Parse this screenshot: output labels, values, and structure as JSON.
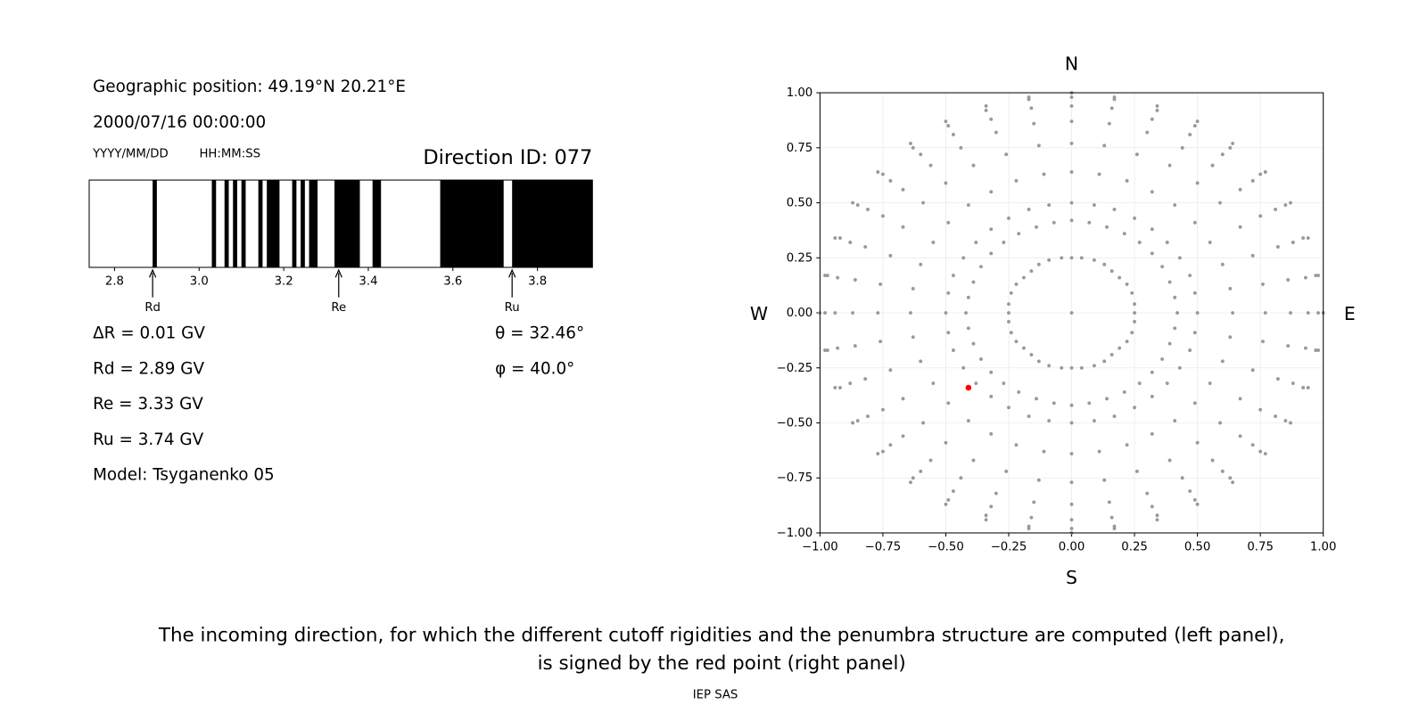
{
  "header": {
    "position": "Geographic position: 49.19°N 20.21°E",
    "datetime": "2000/07/16 00:00:00",
    "date_format": "YYYY/MM/DD",
    "time_format": "HH:MM:SS",
    "direction": "Direction ID: 077"
  },
  "results": {
    "delta_r": "ΔR = 0.01 GV",
    "rd": "Rd = 2.89 GV",
    "re": "Re = 3.33 GV",
    "ru": "Ru = 3.74 GV",
    "model": "Model: Tsyganenko 05",
    "theta": "θ = 32.46°",
    "phi": "φ = 40.0°"
  },
  "chart_data": [
    {
      "type": "penumbra",
      "bands": [
        [
          2.89,
          2.9
        ],
        [
          3.03,
          3.04
        ],
        [
          3.06,
          3.07
        ],
        [
          3.08,
          3.09
        ],
        [
          3.1,
          3.11
        ],
        [
          3.14,
          3.15
        ],
        [
          3.16,
          3.19
        ],
        [
          3.22,
          3.23
        ],
        [
          3.24,
          3.25
        ],
        [
          3.26,
          3.28
        ],
        [
          3.32,
          3.38
        ],
        [
          3.41,
          3.43
        ],
        [
          3.57,
          3.72
        ],
        [
          3.74,
          3.93
        ]
      ],
      "color": "#000000",
      "markers": [
        {
          "label": "Rd",
          "value": 2.89
        },
        {
          "label": "Re",
          "value": 3.33
        },
        {
          "label": "Ru",
          "value": 3.74
        }
      ],
      "xlim": [
        2.74,
        3.93
      ],
      "xticks": [
        2.8,
        {
          "value": 3,
          "label": "3.0"
        },
        3.2,
        3.4,
        3.6,
        3.8
      ]
    },
    {
      "type": "scatter",
      "color": "#999999",
      "x": [
        0,
        0.25,
        0.42,
        0.5,
        0.64,
        0.77,
        0.87,
        0.94,
        0.98,
        1,
        0.25,
        0.41,
        0.49,
        0.63,
        0.76,
        0.86,
        0.93,
        0.97,
        0.98,
        0.24,
        0.39,
        0.47,
        0.6,
        0.72,
        0.82,
        0.88,
        0.92,
        0.94,
        0.22,
        0.36,
        0.43,
        0.55,
        0.67,
        0.75,
        0.81,
        0.85,
        0.87,
        0.19,
        0.32,
        0.38,
        0.49,
        0.59,
        0.67,
        0.72,
        0.75,
        0.77,
        0.16,
        0.27,
        0.32,
        0.41,
        0.5,
        0.56,
        0.6,
        0.63,
        0.64,
        0.13,
        0.21,
        0.25,
        0.32,
        0.39,
        0.44,
        0.47,
        0.49,
        0.5,
        0.09,
        0.14,
        0.17,
        0.22,
        0.26,
        0.3,
        0.32,
        0.34,
        0.34,
        0.04,
        0.07,
        0.09,
        0.11,
        0.13,
        0.15,
        0.16,
        0.17,
        0.17,
        0,
        0,
        0,
        0,
        0,
        0,
        0,
        0,
        0,
        -0.04,
        -0.07,
        -0.09,
        -0.11,
        -0.13,
        -0.15,
        -0.16,
        -0.17,
        -0.17,
        -0.09,
        -0.14,
        -0.17,
        -0.22,
        -0.26,
        -0.3,
        -0.32,
        -0.34,
        -0.34,
        -0.13,
        -0.21,
        -0.25,
        -0.32,
        -0.39,
        -0.44,
        -0.47,
        -0.49,
        -0.5,
        -0.16,
        -0.27,
        -0.32,
        -0.41,
        -0.5,
        -0.56,
        -0.6,
        -0.63,
        -0.64,
        -0.19,
        -0.32,
        -0.38,
        -0.49,
        -0.59,
        -0.67,
        -0.72,
        -0.75,
        -0.77,
        -0.22,
        -0.36,
        -0.43,
        -0.55,
        -0.67,
        -0.75,
        -0.81,
        -0.85,
        -0.87,
        -0.24,
        -0.39,
        -0.47,
        -0.6,
        -0.72,
        -0.82,
        -0.88,
        -0.92,
        -0.94,
        -0.25,
        -0.41,
        -0.49,
        -0.63,
        -0.76,
        -0.86,
        -0.93,
        -0.97,
        -0.98,
        -0.25,
        -0.42,
        -0.5,
        -0.64,
        -0.77,
        -0.87,
        -0.94,
        -0.98,
        -1,
        -0.25,
        -0.41,
        -0.49,
        -0.63,
        -0.76,
        -0.86,
        -0.93,
        -0.97,
        -0.98,
        -0.24,
        -0.39,
        -0.47,
        -0.6,
        -0.72,
        -0.82,
        -0.88,
        -0.92,
        -0.94,
        -0.22,
        -0.36,
        -0.43,
        -0.55,
        -0.67,
        -0.75,
        -0.81,
        -0.85,
        -0.87,
        -0.19,
        -0.32,
        -0.38,
        -0.49,
        -0.59,
        -0.67,
        -0.72,
        -0.75,
        -0.77,
        -0.16,
        -0.27,
        -0.32,
        -0.41,
        -0.5,
        -0.56,
        -0.6,
        -0.63,
        -0.64,
        -0.13,
        -0.21,
        -0.25,
        -0.32,
        -0.39,
        -0.44,
        -0.47,
        -0.49,
        -0.5,
        -0.09,
        -0.14,
        -0.17,
        -0.22,
        -0.26,
        -0.3,
        -0.32,
        -0.34,
        -0.34,
        -0.04,
        -0.07,
        -0.09,
        -0.11,
        -0.13,
        -0.15,
        -0.16,
        -0.17,
        -0.17,
        0,
        0,
        0,
        0,
        0,
        0,
        0,
        0,
        0,
        0.04,
        0.07,
        0.09,
        0.11,
        0.13,
        0.15,
        0.16,
        0.17,
        0.17,
        0.09,
        0.14,
        0.17,
        0.22,
        0.26,
        0.3,
        0.32,
        0.34,
        0.34,
        0.13,
        0.21,
        0.25,
        0.32,
        0.39,
        0.44,
        0.47,
        0.49,
        0.5,
        0.16,
        0.27,
        0.32,
        0.41,
        0.5,
        0.56,
        0.6,
        0.63,
        0.64,
        0.19,
        0.32,
        0.38,
        0.49,
        0.59,
        0.67,
        0.72,
        0.75,
        0.77,
        0.22,
        0.36,
        0.43,
        0.55,
        0.67,
        0.75,
        0.81,
        0.85,
        0.87,
        0.24,
        0.39,
        0.47,
        0.6,
        0.72,
        0.82,
        0.88,
        0.92,
        0.94,
        0.25,
        0.41,
        0.49,
        0.63,
        0.76,
        0.86,
        0.93,
        0.97,
        0.98
      ],
      "values": [
        0,
        0,
        0,
        0,
        0,
        0,
        0,
        0,
        0,
        0,
        0.04,
        0.07,
        0.09,
        0.11,
        0.13,
        0.15,
        0.16,
        0.17,
        0.17,
        0.09,
        0.14,
        0.17,
        0.22,
        0.26,
        0.3,
        0.32,
        0.34,
        0.34,
        0.13,
        0.21,
        0.25,
        0.32,
        0.39,
        0.44,
        0.47,
        0.49,
        0.5,
        0.16,
        0.27,
        0.32,
        0.41,
        0.5,
        0.56,
        0.6,
        0.63,
        0.64,
        0.19,
        0.32,
        0.38,
        0.49,
        0.59,
        0.67,
        0.72,
        0.75,
        0.77,
        0.22,
        0.36,
        0.43,
        0.55,
        0.67,
        0.75,
        0.81,
        0.85,
        0.87,
        0.24,
        0.39,
        0.47,
        0.6,
        0.72,
        0.82,
        0.88,
        0.92,
        0.94,
        0.25,
        0.41,
        0.49,
        0.63,
        0.76,
        0.86,
        0.93,
        0.97,
        0.98,
        0.25,
        0.42,
        0.5,
        0.64,
        0.77,
        0.87,
        0.94,
        0.98,
        1,
        0.25,
        0.41,
        0.49,
        0.63,
        0.76,
        0.86,
        0.93,
        0.97,
        0.98,
        0.24,
        0.39,
        0.47,
        0.6,
        0.72,
        0.82,
        0.88,
        0.92,
        0.94,
        0.22,
        0.36,
        0.43,
        0.55,
        0.67,
        0.75,
        0.81,
        0.85,
        0.87,
        0.19,
        0.32,
        0.38,
        0.49,
        0.59,
        0.67,
        0.72,
        0.75,
        0.77,
        0.16,
        0.27,
        0.32,
        0.41,
        0.5,
        0.56,
        0.6,
        0.63,
        0.64,
        0.13,
        0.21,
        0.25,
        0.32,
        0.39,
        0.44,
        0.47,
        0.49,
        0.5,
        0.09,
        0.14,
        0.17,
        0.22,
        0.26,
        0.3,
        0.32,
        0.34,
        0.34,
        0.04,
        0.07,
        0.09,
        0.11,
        0.13,
        0.15,
        0.16,
        0.17,
        0.17,
        0,
        0,
        0,
        0,
        0,
        0,
        0,
        0,
        0,
        -0.04,
        -0.07,
        -0.09,
        -0.11,
        -0.13,
        -0.15,
        -0.16,
        -0.17,
        -0.17,
        -0.09,
        -0.14,
        -0.17,
        -0.22,
        -0.26,
        -0.3,
        -0.32,
        -0.34,
        -0.34,
        -0.13,
        -0.21,
        -0.25,
        -0.32,
        -0.39,
        -0.44,
        -0.47,
        -0.49,
        -0.5,
        -0.16,
        -0.27,
        -0.32,
        -0.41,
        -0.5,
        -0.56,
        -0.6,
        -0.63,
        -0.64,
        -0.19,
        -0.32,
        -0.38,
        -0.49,
        -0.59,
        -0.67,
        -0.72,
        -0.75,
        -0.77,
        -0.22,
        -0.36,
        -0.43,
        -0.55,
        -0.67,
        -0.75,
        -0.81,
        -0.85,
        -0.87,
        -0.24,
        -0.39,
        -0.47,
        -0.6,
        -0.72,
        -0.82,
        -0.88,
        -0.92,
        -0.94,
        -0.25,
        -0.41,
        -0.49,
        -0.63,
        -0.76,
        -0.86,
        -0.93,
        -0.97,
        -0.98,
        -0.25,
        -0.42,
        -0.5,
        -0.64,
        -0.77,
        -0.87,
        -0.94,
        -0.98,
        -1,
        -0.25,
        -0.41,
        -0.49,
        -0.63,
        -0.76,
        -0.86,
        -0.93,
        -0.97,
        -0.98,
        -0.24,
        -0.39,
        -0.47,
        -0.6,
        -0.72,
        -0.82,
        -0.88,
        -0.92,
        -0.94,
        -0.22,
        -0.36,
        -0.43,
        -0.55,
        -0.67,
        -0.75,
        -0.81,
        -0.85,
        -0.87,
        -0.19,
        -0.32,
        -0.38,
        -0.49,
        -0.59,
        -0.67,
        -0.72,
        -0.75,
        -0.77,
        -0.16,
        -0.27,
        -0.32,
        -0.41,
        -0.5,
        -0.56,
        -0.6,
        -0.63,
        -0.64,
        -0.13,
        -0.21,
        -0.25,
        -0.32,
        -0.39,
        -0.44,
        -0.47,
        -0.49,
        -0.5,
        -0.09,
        -0.14,
        -0.17,
        -0.22,
        -0.26,
        -0.3,
        -0.32,
        -0.34,
        -0.34,
        -0.04,
        -0.07,
        -0.09,
        -0.11,
        -0.13,
        -0.15,
        -0.16,
        -0.17,
        -0.17
      ],
      "highlight": {
        "x": -0.41,
        "y": -0.34,
        "color": "#ff0000"
      },
      "xlim": [
        -1,
        1
      ],
      "ylim": [
        -1,
        1
      ],
      "xticks": [
        {
          "value": -1,
          "label": "−1.00"
        },
        {
          "value": -0.75,
          "label": "−0.75"
        },
        {
          "value": -0.5,
          "label": "−0.50"
        },
        {
          "value": -0.25,
          "label": "−0.25"
        },
        {
          "value": 0,
          "label": "0.00"
        },
        {
          "value": 0.25,
          "label": "0.25"
        },
        {
          "value": 0.5,
          "label": "0.50"
        },
        {
          "value": 0.75,
          "label": "0.75"
        },
        {
          "value": 1,
          "label": "1.00"
        }
      ],
      "yticks": [
        {
          "value": -1,
          "label": "−1.00"
        },
        {
          "value": -0.75,
          "label": "−0.75"
        },
        {
          "value": -0.5,
          "label": "−0.50"
        },
        {
          "value": -0.25,
          "label": "−0.25"
        },
        {
          "value": 0,
          "label": "0.00"
        },
        {
          "value": 0.25,
          "label": "0.25"
        },
        {
          "value": 0.5,
          "label": "0.50"
        },
        {
          "value": 0.75,
          "label": "0.75"
        },
        {
          "value": 1,
          "label": "1.00"
        }
      ],
      "grid": true,
      "compass": {
        "north": "N",
        "south": "S",
        "west": "W",
        "east": "E"
      }
    }
  ],
  "caption": [
    "The incoming direction, for which the different cutoff rigidities and the penumbra structure are computed (left panel),",
    "is signed by the red point (right panel)"
  ],
  "footer": "IEP SAS"
}
